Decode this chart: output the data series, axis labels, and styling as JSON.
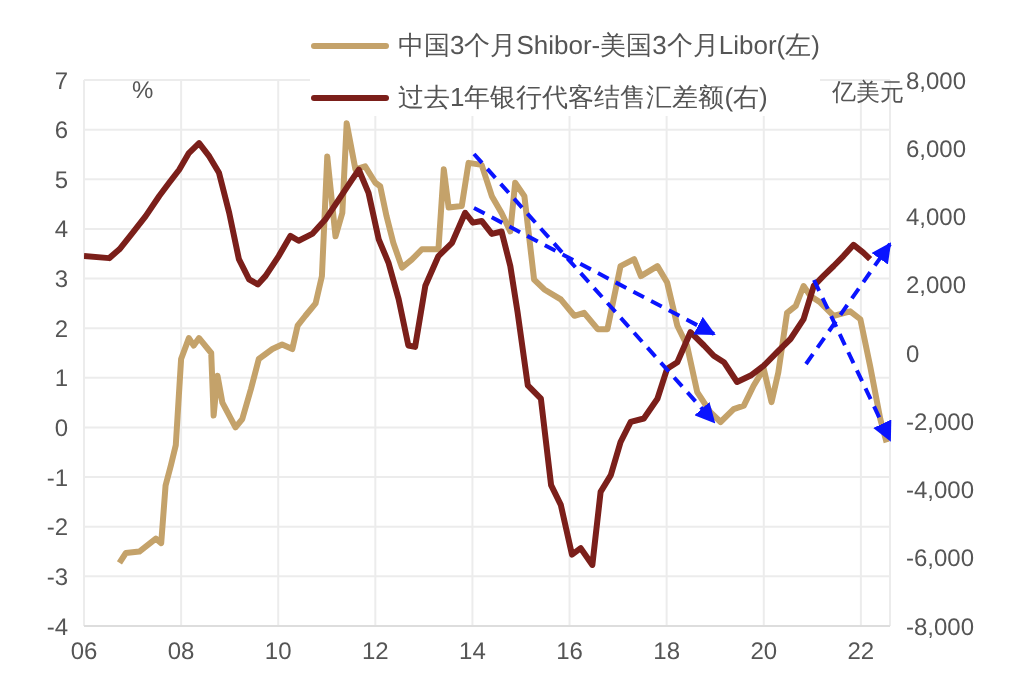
{
  "chart_data": {
    "type": "line",
    "ylabel": "%",
    "y2label": "亿美元",
    "legend": "top",
    "grid": true,
    "marker": "none",
    "line_style": "solid",
    "xlim": [
      2006,
      2022.6
    ],
    "xticks": [
      {
        "value": 2006,
        "label": "06"
      },
      {
        "value": 2008,
        "label": "08"
      },
      {
        "value": 2010,
        "label": "10"
      },
      {
        "value": 2012,
        "label": "12"
      },
      {
        "value": 2014,
        "label": "14"
      },
      {
        "value": 2016,
        "label": "16"
      },
      {
        "value": 2018,
        "label": "18"
      },
      {
        "value": 2020,
        "label": "20"
      },
      {
        "value": 2022,
        "label": "22"
      }
    ],
    "ylim": [
      -4,
      7
    ],
    "yticks": [
      -4,
      -3,
      -2,
      -1,
      0,
      1,
      2,
      3,
      4,
      5,
      6,
      7
    ],
    "y2lim": [
      -8000,
      8000
    ],
    "y2ticks": [
      {
        "value": -8000,
        "label": "-8,000"
      },
      {
        "value": -6000,
        "label": "-6,000"
      },
      {
        "value": -4000,
        "label": "-4,000"
      },
      {
        "value": -2000,
        "label": "-2,000"
      },
      0,
      {
        "value": 2000,
        "label": "2,000"
      },
      {
        "value": 4000,
        "label": "4,000"
      },
      {
        "value": 6000,
        "label": "6,000"
      },
      {
        "value": 8000,
        "label": "8,000"
      }
    ],
    "series": [
      {
        "name": "中国3个月Shibor-美国3个月Libor(左)",
        "color": "#c4a26a",
        "axis": "y",
        "x": [
          2006.73,
          2006.86,
          2007.14,
          2007.48,
          2007.59,
          2007.68,
          2007.79,
          2007.89,
          2008.0,
          2008.16,
          2008.26,
          2008.37,
          2008.62,
          2008.67,
          2008.75,
          2008.85,
          2009.12,
          2009.26,
          2009.44,
          2009.6,
          2009.88,
          2010.08,
          2010.29,
          2010.4,
          2010.56,
          2010.77,
          2010.9,
          2011.01,
          2011.18,
          2011.32,
          2011.41,
          2011.59,
          2011.79,
          2012.0,
          2012.1,
          2012.23,
          2012.37,
          2012.55,
          2012.75,
          2012.96,
          2013.3,
          2013.41,
          2013.51,
          2013.78,
          2013.92,
          2014.19,
          2014.4,
          2014.6,
          2014.78,
          2014.88,
          2015.07,
          2015.27,
          2015.48,
          2015.82,
          2016.1,
          2016.3,
          2016.58,
          2016.78,
          2017.05,
          2017.33,
          2017.47,
          2017.81,
          2018.01,
          2018.22,
          2018.42,
          2018.63,
          2018.9,
          2019.11,
          2019.38,
          2019.59,
          2019.79,
          2020.0,
          2020.16,
          2020.3,
          2020.48,
          2020.66,
          2020.82,
          2020.96,
          2021.16,
          2021.44,
          2021.78,
          2021.99,
          2022.19,
          2022.4,
          2022.53
        ],
        "values": [
          -2.73,
          -2.53,
          -2.5,
          -2.24,
          -2.33,
          -1.17,
          -0.76,
          -0.36,
          1.38,
          1.8,
          1.65,
          1.8,
          1.5,
          0.24,
          1.04,
          0.5,
          0,
          0.17,
          0.78,
          1.38,
          1.58,
          1.67,
          1.58,
          2.05,
          2.25,
          2.5,
          3.05,
          5.46,
          3.85,
          4.32,
          6.13,
          5.2,
          5.26,
          4.93,
          4.86,
          4.26,
          3.72,
          3.22,
          3.38,
          3.59,
          3.59,
          5.2,
          4.43,
          4.46,
          5.33,
          5.29,
          4.66,
          4.32,
          3.95,
          4.93,
          4.66,
          2.98,
          2.78,
          2.58,
          2.25,
          2.31,
          1.98,
          1.98,
          3.25,
          3.39,
          3.05,
          3.25,
          2.92,
          2.05,
          1.65,
          0.71,
          0.31,
          0.11,
          0.37,
          0.44,
          0.84,
          1.18,
          0.51,
          1.11,
          2.31,
          2.45,
          2.85,
          2.65,
          2.52,
          2.25,
          2.34,
          2.18,
          1.24,
          0.17,
          -0.3
        ]
      },
      {
        "name": "过去1年银行代客结售汇差额(右)",
        "color": "#7b1f1a",
        "axis": "y2",
        "x": [
          2006.0,
          2006.52,
          2006.73,
          2007.0,
          2007.27,
          2007.55,
          2007.75,
          2007.96,
          2008.16,
          2008.37,
          2008.58,
          2008.78,
          2008.99,
          2009.19,
          2009.4,
          2009.58,
          2009.74,
          2010.01,
          2010.25,
          2010.42,
          2010.7,
          2010.97,
          2011.25,
          2011.52,
          2011.66,
          2011.86,
          2012.07,
          2012.27,
          2012.48,
          2012.68,
          2012.82,
          2013.03,
          2013.3,
          2013.58,
          2013.85,
          2014.01,
          2014.19,
          2014.4,
          2014.6,
          2014.78,
          2014.93,
          2015.14,
          2015.41,
          2015.62,
          2015.82,
          2016.05,
          2016.23,
          2016.47,
          2016.64,
          2016.85,
          2017.05,
          2017.26,
          2017.53,
          2017.81,
          2018.01,
          2018.22,
          2018.49,
          2018.77,
          2018.97,
          2019.18,
          2019.45,
          2019.73,
          2020.0,
          2020.27,
          2020.55,
          2020.82,
          2021.03,
          2021.23,
          2021.44,
          2021.64,
          2021.85,
          2022.05,
          2022.19
        ],
        "values": [
          2840,
          2780,
          3040,
          3520,
          4010,
          4600,
          4980,
          5370,
          5860,
          6150,
          5760,
          5280,
          4110,
          2750,
          2160,
          2010,
          2260,
          2840,
          3430,
          3290,
          3490,
          3910,
          4500,
          5080,
          5370,
          4690,
          3330,
          2650,
          1580,
          220,
          180,
          1970,
          2840,
          3230,
          4110,
          3820,
          3870,
          3490,
          3560,
          2550,
          1190,
          -950,
          -1340,
          -3870,
          -4450,
          -5910,
          -5720,
          -6210,
          -4070,
          -3580,
          -2610,
          -2020,
          -1920,
          -1340,
          -460,
          -270,
          610,
          220,
          -80,
          -270,
          -850,
          -660,
          -370,
          20,
          410,
          990,
          1970,
          2260,
          2550,
          2840,
          3170,
          2940,
          2750
        ]
      }
    ]
  }
}
